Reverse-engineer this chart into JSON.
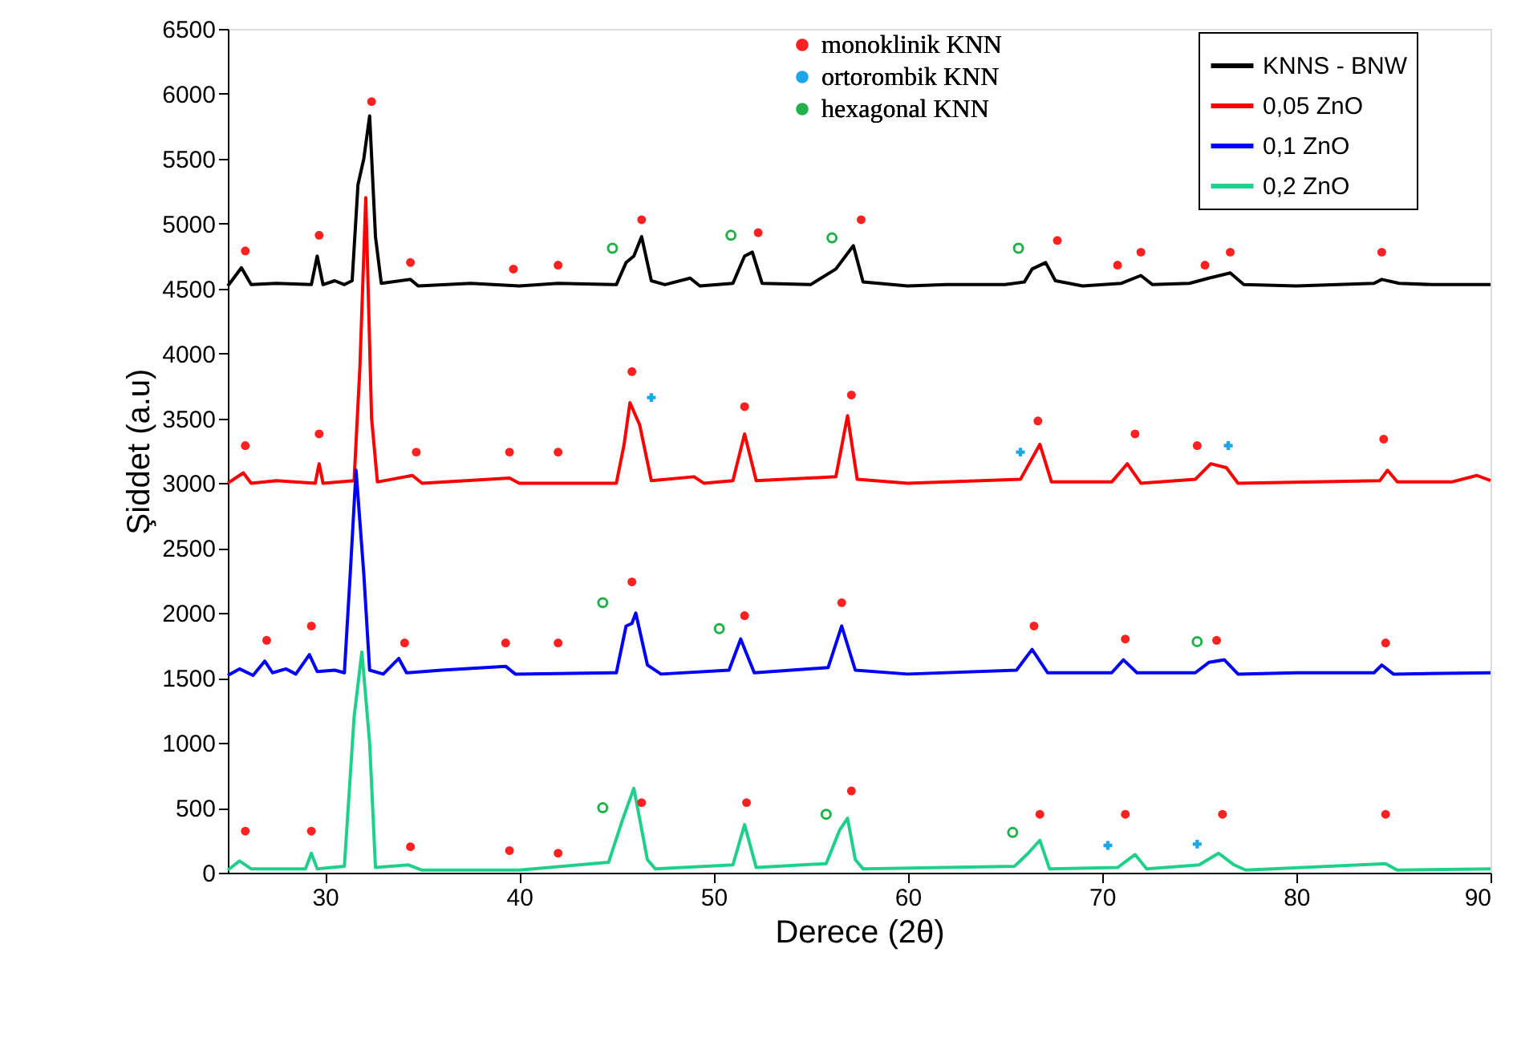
{
  "chart_data": {
    "type": "line",
    "xlabel": "Derece (2θ)",
    "ylabel": "Şiddet (a.u)",
    "xlim": [
      25,
      90
    ],
    "xticks": [
      30,
      40,
      50,
      60,
      70,
      80,
      90
    ],
    "ylim": [
      0,
      6500
    ],
    "yticks": [
      0,
      500,
      1000,
      1500,
      2000,
      2500,
      3000,
      3500,
      4000,
      4500,
      5000,
      5500,
      6000,
      6500
    ],
    "grid": false,
    "legend": "top right",
    "marker": "none",
    "line_style": "solid",
    "series": [
      {
        "name": "KNNS - BNW",
        "color": "#000000",
        "x": [
          25,
          25.7,
          26.2,
          27.5,
          29.3,
          29.6,
          29.9,
          30.5,
          31,
          31.4,
          31.7,
          32.0,
          32.3,
          32.6,
          32.9,
          34.4,
          34.8,
          37.5,
          40,
          42,
          45,
          45.5,
          45.9,
          46.3,
          46.8,
          47.5,
          48.8,
          49.3,
          51,
          51.6,
          52.0,
          52.5,
          55,
          56.3,
          57.2,
          57.7,
          60,
          62,
          65,
          66,
          66.4,
          67.1,
          67.6,
          69,
          71,
          72,
          72.6,
          74.5,
          75.5,
          76.6,
          77.3,
          80,
          84,
          84.4,
          85.3,
          87,
          90
        ],
        "values": [
          4520,
          4660,
          4530,
          4540,
          4530,
          4750,
          4530,
          4560,
          4530,
          4560,
          5300,
          5500,
          5830,
          4900,
          4540,
          4570,
          4520,
          4540,
          4520,
          4540,
          4530,
          4700,
          4750,
          4900,
          4560,
          4530,
          4580,
          4520,
          4540,
          4750,
          4780,
          4540,
          4530,
          4650,
          4830,
          4550,
          4520,
          4530,
          4530,
          4550,
          4650,
          4700,
          4560,
          4520,
          4540,
          4600,
          4530,
          4540,
          4580,
          4620,
          4530,
          4520,
          4540,
          4570,
          4540,
          4530,
          4530
        ]
      },
      {
        "name": "0,05 ZnO",
        "color": "#ff0000",
        "x": [
          25,
          25.8,
          26.2,
          27.5,
          29.5,
          29.7,
          29.9,
          31.5,
          31.8,
          32.1,
          32.4,
          32.7,
          34.5,
          35,
          39.5,
          40,
          45,
          45.4,
          45.7,
          46.2,
          46.8,
          49,
          49.5,
          51,
          51.6,
          52.2,
          56.3,
          56.9,
          57.4,
          60,
          65.8,
          66.8,
          67.4,
          70.5,
          71.3,
          72,
          74.8,
          75.6,
          76.4,
          77,
          84.3,
          84.7,
          85.2,
          88,
          89.3,
          90
        ],
        "values": [
          3000,
          3080,
          3000,
          3020,
          3000,
          3150,
          3000,
          3020,
          3900,
          5200,
          3500,
          3010,
          3060,
          3000,
          3040,
          3000,
          3000,
          3300,
          3620,
          3450,
          3020,
          3050,
          3000,
          3020,
          3380,
          3020,
          3050,
          3520,
          3030,
          3000,
          3030,
          3300,
          3010,
          3010,
          3150,
          3000,
          3030,
          3150,
          3120,
          3000,
          3020,
          3100,
          3010,
          3010,
          3060,
          3020
        ]
      },
      {
        "name": "0,1 ZnO",
        "color": "#0000ff",
        "x": [
          25,
          25.6,
          26.3,
          26.9,
          27.3,
          28,
          28.5,
          29.2,
          29.6,
          30.5,
          31,
          31.3,
          31.6,
          32,
          32.3,
          33,
          33.8,
          34.2,
          36,
          39.3,
          39.8,
          45,
          45.5,
          45.8,
          46.0,
          46.6,
          47.3,
          50.8,
          51.4,
          52.1,
          55.9,
          56.6,
          57.3,
          60,
          65.6,
          66.4,
          67.2,
          70.5,
          71.1,
          71.8,
          74.8,
          75.5,
          76.3,
          77,
          80,
          84,
          84.4,
          85,
          90
        ],
        "values": [
          1520,
          1570,
          1520,
          1630,
          1540,
          1570,
          1530,
          1680,
          1550,
          1560,
          1540,
          2300,
          3100,
          2300,
          1560,
          1530,
          1650,
          1540,
          1560,
          1590,
          1530,
          1540,
          1900,
          1920,
          2000,
          1600,
          1530,
          1560,
          1800,
          1540,
          1580,
          1900,
          1560,
          1530,
          1560,
          1720,
          1540,
          1540,
          1640,
          1540,
          1540,
          1620,
          1640,
          1530,
          1540,
          1540,
          1600,
          1530,
          1540
        ]
      },
      {
        "name": "0,2 ZnO",
        "color": "#1fd08a",
        "x": [
          25,
          25.6,
          26.2,
          29,
          29.3,
          29.6,
          31,
          31.5,
          31.9,
          32.3,
          32.6,
          34.3,
          35,
          40,
          44.6,
          45.3,
          45.9,
          46.6,
          47,
          51,
          51.6,
          52.2,
          55.8,
          56.5,
          56.9,
          57.3,
          57.7,
          65.5,
          66.2,
          66.8,
          67.3,
          70.8,
          71.7,
          72.3,
          75,
          76,
          76.8,
          77.4,
          84.6,
          85.2,
          90
        ],
        "values": [
          20,
          90,
          30,
          30,
          150,
          30,
          50,
          1200,
          1700,
          1000,
          40,
          60,
          20,
          20,
          80,
          400,
          650,
          100,
          30,
          60,
          370,
          40,
          70,
          330,
          420,
          100,
          30,
          50,
          150,
          250,
          30,
          40,
          140,
          30,
          60,
          150,
          60,
          20,
          70,
          20,
          30
        ]
      },
      {
        "name": "monoklinik KNN",
        "type": "scatter",
        "marker": "circle",
        "color": "#ff2020",
        "x": [
          25.9,
          29.7,
          32.4,
          34.4,
          39.7,
          42.0,
          46.3,
          52.3,
          57.6,
          67.7,
          70.8,
          72.0,
          75.3,
          76.6,
          84.4,
          25.9,
          29.7,
          34.7,
          39.5,
          42.0,
          45.8,
          51.6,
          57.1,
          66.7,
          71.7,
          74.9,
          84.5,
          27.0,
          29.3,
          34.1,
          39.3,
          42.0,
          45.8,
          51.6,
          56.6,
          66.5,
          71.2,
          75.9,
          84.6,
          25.9,
          29.3,
          34.4,
          39.5,
          42.0,
          46.3,
          51.7,
          57.1,
          66.8,
          71.2,
          76.2,
          84.6
        ],
        "values": [
          4790,
          4910,
          5940,
          4700,
          4650,
          4680,
          5030,
          4930,
          5030,
          4870,
          4680,
          4780,
          4680,
          4780,
          4780,
          3290,
          3380,
          3240,
          3240,
          3240,
          3860,
          3590,
          3680,
          3480,
          3380,
          3290,
          3340,
          1790,
          1900,
          1770,
          1770,
          1770,
          2240,
          1980,
          2080,
          1900,
          1800,
          1790,
          1770,
          320,
          320,
          200,
          170,
          150,
          540,
          540,
          630,
          450,
          450,
          450,
          450
        ]
      },
      {
        "name": "ortorombik KNN",
        "type": "scatter",
        "marker": "cross",
        "color": "#1ea7e8",
        "x": [
          46.8,
          65.8,
          76.5,
          70.3,
          74.9
        ],
        "values": [
          3660,
          3240,
          3290,
          210,
          220
        ]
      },
      {
        "name": "hexagonal KNN",
        "type": "scatter",
        "marker": "circle_open",
        "color": "#22b04b",
        "x": [
          44.8,
          50.9,
          56.1,
          65.7,
          44.3,
          50.3,
          74.9,
          44.3,
          55.8,
          65.4
        ],
        "values": [
          4810,
          4910,
          4890,
          4810,
          2080,
          1880,
          1780,
          500,
          450,
          310
        ]
      }
    ]
  }
}
